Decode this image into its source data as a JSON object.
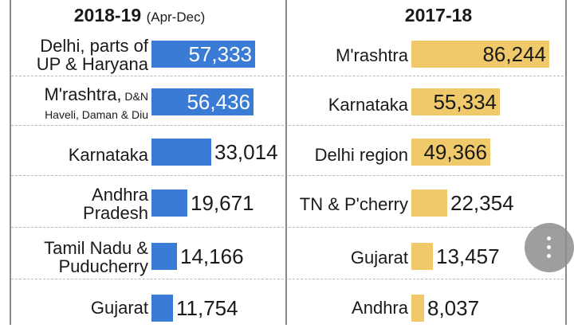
{
  "chart_data": [
    {
      "type": "bar",
      "orientation": "horizontal",
      "title": "2018-19",
      "subtitle": "(Apr-Dec)",
      "bar_color": "#3a7bd5",
      "categories": [
        [
          "Delhi, parts of",
          "UP & Haryana"
        ],
        [
          "M'rashtra,",
          "Haveli, Daman & Diu"
        ],
        [
          "Karnataka"
        ],
        [
          "Andhra",
          "Pradesh"
        ],
        [
          "Tamil Nadu &",
          "Puducherry"
        ],
        [
          "Gujarat"
        ]
      ],
      "category_suffixes": [
        "",
        "D&N",
        "",
        "",
        "",
        ""
      ],
      "values": [
        57333,
        56436,
        33014,
        19671,
        14166,
        11754
      ],
      "value_labels": [
        "57,333",
        "56,436",
        "33,014",
        "19,671",
        "14,166",
        "11,754"
      ]
    },
    {
      "type": "bar",
      "orientation": "horizontal",
      "title": "2017-18",
      "bar_color": "#f0c96a",
      "categories": [
        [
          "M'rashtra"
        ],
        [
          "Karnataka"
        ],
        [
          "Delhi region"
        ],
        [
          "TN & P'cherry"
        ],
        [
          "Gujarat"
        ],
        [
          "Andhra"
        ]
      ],
      "values": [
        86244,
        55334,
        49366,
        22354,
        13457,
        8037
      ],
      "value_labels": [
        "86,244",
        "55,334",
        "49,366",
        "22,354",
        "13,457",
        "8,037"
      ]
    }
  ],
  "overlay": {
    "icon": "more-vertical-icon"
  }
}
